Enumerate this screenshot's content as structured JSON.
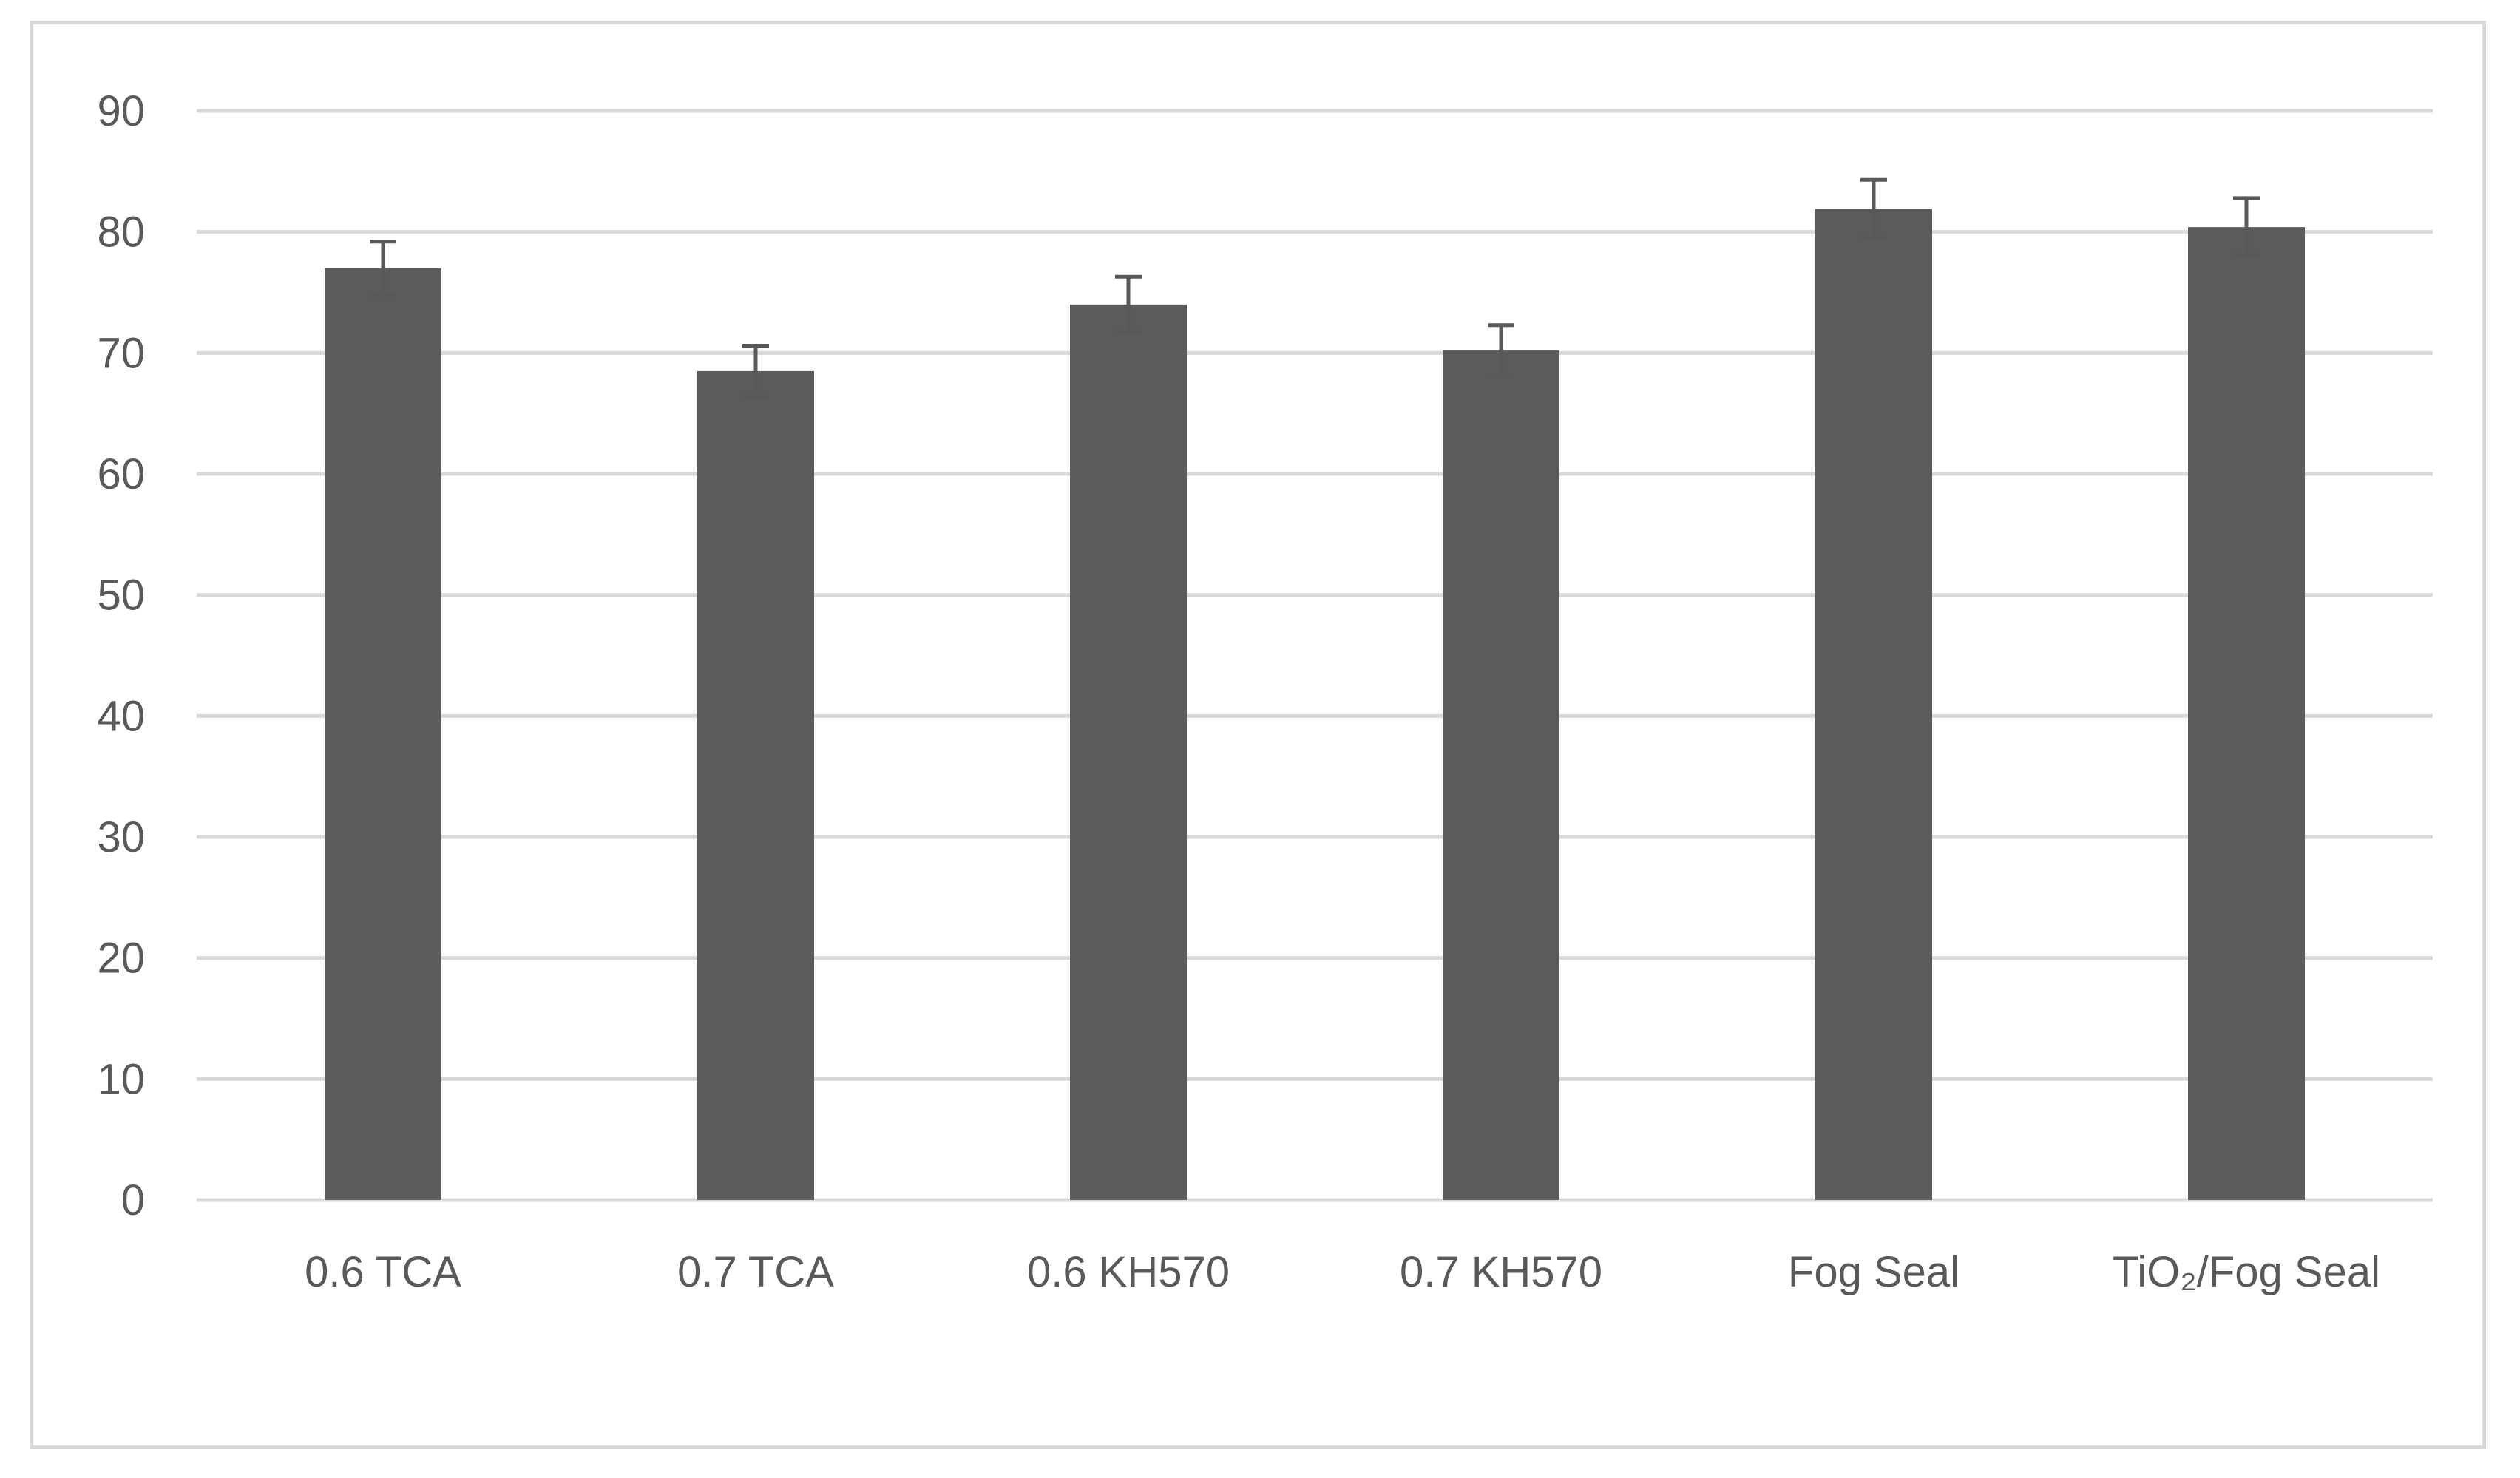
{
  "chart_data": {
    "type": "bar",
    "title": "",
    "xlabel": "",
    "ylabel": "",
    "categories": [
      "0.6 TCA",
      "0.7 TCA",
      "0.6 KH570",
      "0.7 KH570",
      "Fog Seal",
      "TiO₂/Fog Seal"
    ],
    "values": [
      77,
      68.5,
      74,
      70.2,
      81.9,
      80.4
    ],
    "error": [
      2.2,
      2.1,
      2.3,
      2.1,
      2.4,
      2.4
    ],
    "ylim": [
      0,
      90
    ],
    "yticks": [
      0,
      10,
      20,
      30,
      40,
      50,
      60,
      70,
      80,
      90
    ],
    "grid": true,
    "legend": "none",
    "colors": {
      "bar": "#5b5b5b",
      "grid": "#d9d9d9",
      "error_bar": "#595959",
      "text": "#595959"
    }
  }
}
